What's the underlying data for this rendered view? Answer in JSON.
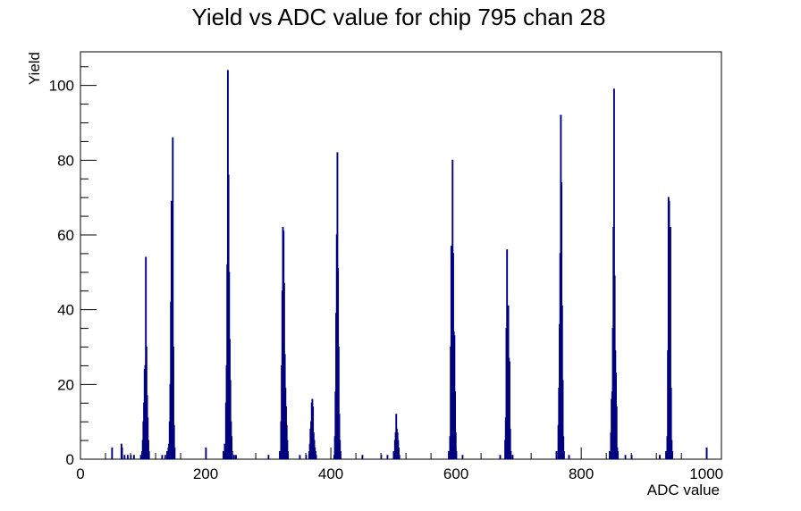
{
  "chart_data": {
    "type": "histogram",
    "title": "Yield vs ADC value for chip 795 chan 28",
    "xlabel": "ADC value",
    "ylabel": "Yield",
    "xlim": [
      0,
      1024
    ],
    "ylim": [
      0,
      109
    ],
    "x_ticks": [
      0,
      200,
      400,
      600,
      800,
      1000
    ],
    "y_ticks": [
      0,
      20,
      40,
      60,
      80,
      100
    ],
    "grid": false,
    "legend": "none",
    "line_color": "#00007f",
    "bins": [
      [
        50,
        3
      ],
      [
        65,
        4
      ],
      [
        66,
        3
      ],
      [
        70,
        1
      ],
      [
        75,
        1
      ],
      [
        80,
        1
      ],
      [
        85,
        1
      ],
      [
        96,
        1
      ],
      [
        98,
        2
      ],
      [
        99,
        5
      ],
      [
        100,
        10
      ],
      [
        101,
        15
      ],
      [
        102,
        24
      ],
      [
        103,
        25
      ],
      [
        104,
        54
      ],
      [
        105,
        30
      ],
      [
        106,
        17
      ],
      [
        107,
        11
      ],
      [
        108,
        5
      ],
      [
        109,
        2
      ],
      [
        130,
        1
      ],
      [
        135,
        1
      ],
      [
        138,
        2
      ],
      [
        140,
        3
      ],
      [
        141,
        4
      ],
      [
        142,
        10
      ],
      [
        143,
        20
      ],
      [
        144,
        42
      ],
      [
        145,
        69
      ],
      [
        146,
        40
      ],
      [
        147,
        86
      ],
      [
        148,
        30
      ],
      [
        149,
        9
      ],
      [
        150,
        3
      ],
      [
        200,
        3
      ],
      [
        228,
        2
      ],
      [
        230,
        4
      ],
      [
        231,
        3
      ],
      [
        232,
        15
      ],
      [
        233,
        25
      ],
      [
        234,
        52
      ],
      [
        235,
        104
      ],
      [
        236,
        76
      ],
      [
        237,
        50
      ],
      [
        238,
        32
      ],
      [
        239,
        21
      ],
      [
        240,
        10
      ],
      [
        241,
        6
      ],
      [
        242,
        2
      ],
      [
        245,
        1
      ],
      [
        248,
        1
      ],
      [
        300,
        1
      ],
      [
        318,
        2
      ],
      [
        320,
        10
      ],
      [
        321,
        25
      ],
      [
        322,
        45
      ],
      [
        323,
        62
      ],
      [
        324,
        61
      ],
      [
        325,
        47
      ],
      [
        326,
        28
      ],
      [
        327,
        19
      ],
      [
        328,
        14
      ],
      [
        329,
        9
      ],
      [
        330,
        5
      ],
      [
        331,
        2
      ],
      [
        350,
        1
      ],
      [
        360,
        1
      ],
      [
        365,
        2
      ],
      [
        366,
        4
      ],
      [
        367,
        8
      ],
      [
        368,
        10
      ],
      [
        369,
        15
      ],
      [
        370,
        16
      ],
      [
        371,
        14
      ],
      [
        372,
        7
      ],
      [
        373,
        5
      ],
      [
        374,
        3
      ],
      [
        375,
        2
      ],
      [
        376,
        1
      ],
      [
        405,
        1
      ],
      [
        406,
        6
      ],
      [
        407,
        18
      ],
      [
        408,
        39
      ],
      [
        409,
        60
      ],
      [
        410,
        82
      ],
      [
        411,
        51
      ],
      [
        412,
        30
      ],
      [
        413,
        12
      ],
      [
        414,
        5
      ],
      [
        415,
        2
      ],
      [
        450,
        1
      ],
      [
        480,
        1
      ],
      [
        490,
        1
      ],
      [
        500,
        2
      ],
      [
        502,
        5
      ],
      [
        503,
        7
      ],
      [
        504,
        12
      ],
      [
        505,
        8
      ],
      [
        506,
        7
      ],
      [
        507,
        5
      ],
      [
        508,
        3
      ],
      [
        509,
        1
      ],
      [
        588,
        2
      ],
      [
        590,
        6
      ],
      [
        591,
        30
      ],
      [
        592,
        57
      ],
      [
        593,
        54
      ],
      [
        594,
        80
      ],
      [
        595,
        55
      ],
      [
        596,
        34
      ],
      [
        597,
        33
      ],
      [
        598,
        18
      ],
      [
        599,
        7
      ],
      [
        600,
        2
      ],
      [
        610,
        1
      ],
      [
        670,
        1
      ],
      [
        678,
        5
      ],
      [
        679,
        11
      ],
      [
        680,
        35
      ],
      [
        681,
        56
      ],
      [
        682,
        39
      ],
      [
        683,
        41
      ],
      [
        684,
        27
      ],
      [
        685,
        26
      ],
      [
        686,
        8
      ],
      [
        687,
        2
      ],
      [
        690,
        1
      ],
      [
        760,
        2
      ],
      [
        763,
        9
      ],
      [
        764,
        19
      ],
      [
        765,
        36
      ],
      [
        766,
        55
      ],
      [
        767,
        92
      ],
      [
        768,
        74
      ],
      [
        769,
        41
      ],
      [
        770,
        21
      ],
      [
        771,
        6
      ],
      [
        772,
        2
      ],
      [
        780,
        1
      ],
      [
        845,
        2
      ],
      [
        847,
        7
      ],
      [
        848,
        16
      ],
      [
        849,
        18
      ],
      [
        850,
        35
      ],
      [
        851,
        62
      ],
      [
        852,
        99
      ],
      [
        853,
        49
      ],
      [
        854,
        29
      ],
      [
        855,
        23
      ],
      [
        856,
        14
      ],
      [
        857,
        3
      ],
      [
        858,
        2
      ],
      [
        870,
        1
      ],
      [
        880,
        1
      ],
      [
        925,
        1
      ],
      [
        935,
        2
      ],
      [
        937,
        6
      ],
      [
        938,
        29
      ],
      [
        939,
        70
      ],
      [
        940,
        69
      ],
      [
        941,
        24
      ],
      [
        942,
        62
      ],
      [
        943,
        19
      ],
      [
        944,
        5
      ],
      [
        945,
        2
      ],
      [
        1000,
        3
      ]
    ]
  }
}
